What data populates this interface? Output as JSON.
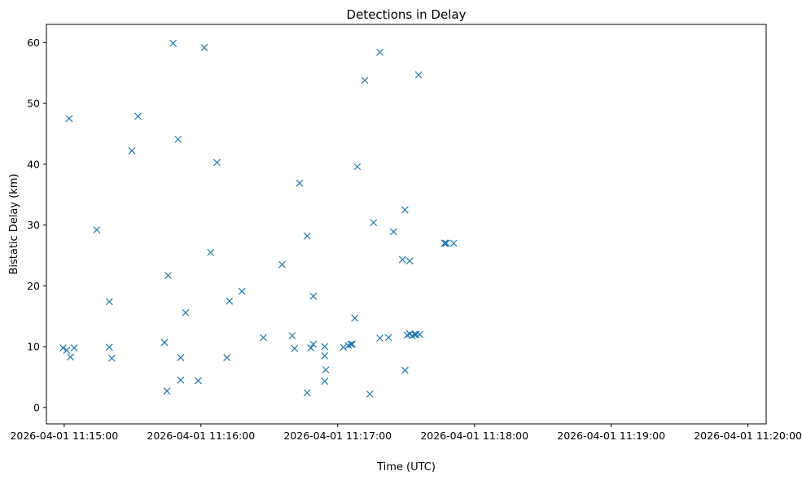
{
  "chart_data": {
    "type": "scatter",
    "title": "Detections in Delay",
    "xlabel": "Time (UTC)",
    "ylabel": "Bistatic Delay (km)",
    "x_unit": "seconds since 2026-04-01 11:15:00",
    "xlim": [
      -7.8,
      308
    ],
    "ylim": [
      -2.7,
      63
    ],
    "marker": "x",
    "color": "#1f77b4",
    "x_ticks": [
      {
        "value": 0,
        "label": "2026-04-01 11:15:00"
      },
      {
        "value": 60,
        "label": "2026-04-01 11:16:00"
      },
      {
        "value": 120,
        "label": "2026-04-01 11:17:00"
      },
      {
        "value": 180,
        "label": "2026-04-01 11:18:00"
      },
      {
        "value": 240,
        "label": "2026-04-01 11:19:00"
      },
      {
        "value": 300,
        "label": "2026-04-01 11:20:00"
      }
    ],
    "y_ticks": [
      {
        "value": 0,
        "label": "0"
      },
      {
        "value": 10,
        "label": "10"
      },
      {
        "value": 20,
        "label": "20"
      },
      {
        "value": 30,
        "label": "30"
      },
      {
        "value": 40,
        "label": "40"
      },
      {
        "value": 50,
        "label": "50"
      },
      {
        "value": 60,
        "label": "60"
      }
    ],
    "points": [
      {
        "x": -0.5,
        "y": 9.8
      },
      {
        "x": 1.1,
        "y": 9.4
      },
      {
        "x": 2.2,
        "y": 47.5
      },
      {
        "x": 2.8,
        "y": 8.3
      },
      {
        "x": 4.4,
        "y": 9.8
      },
      {
        "x": 14.3,
        "y": 29.2
      },
      {
        "x": 19.8,
        "y": 17.4
      },
      {
        "x": 19.8,
        "y": 9.9
      },
      {
        "x": 20.9,
        "y": 8.1
      },
      {
        "x": 29.7,
        "y": 42.2
      },
      {
        "x": 32.4,
        "y": 47.9
      },
      {
        "x": 44.0,
        "y": 10.7
      },
      {
        "x": 45.1,
        "y": 2.7
      },
      {
        "x": 45.6,
        "y": 21.7
      },
      {
        "x": 47.8,
        "y": 59.9
      },
      {
        "x": 50.0,
        "y": 44.1
      },
      {
        "x": 51.1,
        "y": 8.2
      },
      {
        "x": 51.1,
        "y": 4.5
      },
      {
        "x": 53.3,
        "y": 15.6
      },
      {
        "x": 58.8,
        "y": 4.4
      },
      {
        "x": 61.5,
        "y": 59.2
      },
      {
        "x": 64.3,
        "y": 25.5
      },
      {
        "x": 67.0,
        "y": 40.3
      },
      {
        "x": 71.4,
        "y": 8.2
      },
      {
        "x": 72.5,
        "y": 17.5
      },
      {
        "x": 78.0,
        "y": 19.1
      },
      {
        "x": 87.4,
        "y": 11.5
      },
      {
        "x": 95.6,
        "y": 23.5
      },
      {
        "x": 100.0,
        "y": 11.8
      },
      {
        "x": 101.1,
        "y": 9.7
      },
      {
        "x": 103.3,
        "y": 36.9
      },
      {
        "x": 106.6,
        "y": 28.2
      },
      {
        "x": 106.6,
        "y": 2.4
      },
      {
        "x": 108.2,
        "y": 9.8
      },
      {
        "x": 109.3,
        "y": 18.3
      },
      {
        "x": 109.3,
        "y": 10.4
      },
      {
        "x": 114.3,
        "y": 10.0
      },
      {
        "x": 114.3,
        "y": 8.5
      },
      {
        "x": 114.3,
        "y": 4.3
      },
      {
        "x": 114.8,
        "y": 6.2
      },
      {
        "x": 122.5,
        "y": 9.9
      },
      {
        "x": 124.7,
        "y": 10.2
      },
      {
        "x": 125.8,
        "y": 10.4
      },
      {
        "x": 126.4,
        "y": 10.4
      },
      {
        "x": 127.5,
        "y": 14.7
      },
      {
        "x": 128.6,
        "y": 39.6
      },
      {
        "x": 131.9,
        "y": 53.8
      },
      {
        "x": 134.1,
        "y": 2.2
      },
      {
        "x": 135.7,
        "y": 30.4
      },
      {
        "x": 138.5,
        "y": 58.4
      },
      {
        "x": 138.5,
        "y": 11.4
      },
      {
        "x": 142.3,
        "y": 11.5
      },
      {
        "x": 144.5,
        "y": 28.9
      },
      {
        "x": 148.4,
        "y": 24.3
      },
      {
        "x": 149.5,
        "y": 32.5
      },
      {
        "x": 149.5,
        "y": 6.1
      },
      {
        "x": 150.5,
        "y": 11.9
      },
      {
        "x": 151.6,
        "y": 24.1
      },
      {
        "x": 151.6,
        "y": 12.1
      },
      {
        "x": 152.7,
        "y": 11.8
      },
      {
        "x": 153.8,
        "y": 12.0
      },
      {
        "x": 154.4,
        "y": 12.0
      },
      {
        "x": 155.5,
        "y": 54.7
      },
      {
        "x": 156.0,
        "y": 12.0
      },
      {
        "x": 170.9,
        "y": 27.0
      },
      {
        "x": 167.0,
        "y": 27.0
      },
      {
        "x": 167.0,
        "y": 27.0
      },
      {
        "x": 167.6,
        "y": 27.0
      },
      {
        "x": 167.0,
        "y": 27.0
      },
      {
        "x": 167.0,
        "y": 27.0
      },
      {
        "x": 167.0,
        "y": 27.0
      },
      {
        "x": 167.0,
        "y": 27.0
      },
      {
        "x": 167.0,
        "y": 27.0
      },
      {
        "x": 167.0,
        "y": 27.0
      },
      {
        "x": 167.0,
        "y": 27.0
      },
      {
        "x": 167.0,
        "y": 27.0
      },
      {
        "x": 167.0,
        "y": 27.0
      },
      {
        "x": 167.0,
        "y": 27.0
      },
      {
        "x": 167.0,
        "y": 27.0
      },
      {
        "x": 167.0,
        "y": 27.0
      }
    ]
  }
}
